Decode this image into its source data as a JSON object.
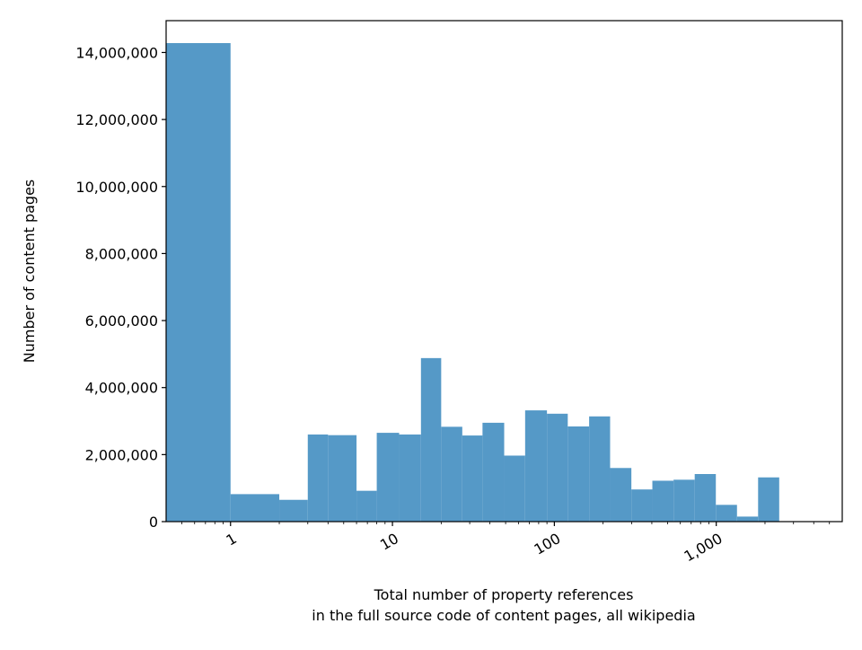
{
  "chart_data": {
    "type": "bar",
    "xscale": "log",
    "ylabel": "Number of content pages",
    "xlabel_lines": [
      "Total number of property references",
      "in the full source code of content pages, all wikipedia"
    ],
    "xlim": [
      0.4,
      6000
    ],
    "ylim": [
      0,
      14950000
    ],
    "grid": false,
    "color": "#5599c7",
    "x_ticks": [
      {
        "value": 1,
        "label": "1"
      },
      {
        "value": 10,
        "label": "10"
      },
      {
        "value": 100,
        "label": "100"
      },
      {
        "value": 1000,
        "label": "1,000"
      }
    ],
    "y_ticks": [
      {
        "value": 0,
        "label": "0"
      },
      {
        "value": 2000000,
        "label": "2,000,000"
      },
      {
        "value": 4000000,
        "label": "4,000,000"
      },
      {
        "value": 6000000,
        "label": "6,000,000"
      },
      {
        "value": 8000000,
        "label": "8,000,000"
      },
      {
        "value": 10000000,
        "label": "10,000,000"
      },
      {
        "value": 12000000,
        "label": "12,000,000"
      },
      {
        "value": 14000000,
        "label": "14,000,000"
      }
    ],
    "bins": [
      {
        "x0": 0.4,
        "x1": 1.0,
        "value": 14280000
      },
      {
        "x0": 1.0,
        "x1": 1.5,
        "value": 820000
      },
      {
        "x0": 1.5,
        "x1": 2.0,
        "value": 820000
      },
      {
        "x0": 2.0,
        "x1": 3.0,
        "value": 650000
      },
      {
        "x0": 3.0,
        "x1": 4.0,
        "value": 2600000
      },
      {
        "x0": 4.0,
        "x1": 6.0,
        "value": 2580000
      },
      {
        "x0": 6.0,
        "x1": 8.0,
        "value": 920000
      },
      {
        "x0": 8.0,
        "x1": 11.0,
        "value": 2650000
      },
      {
        "x0": 11.0,
        "x1": 15.0,
        "value": 2600000
      },
      {
        "x0": 15.0,
        "x1": 20.0,
        "value": 4880000
      },
      {
        "x0": 20.0,
        "x1": 27.0,
        "value": 2830000
      },
      {
        "x0": 27.0,
        "x1": 36.0,
        "value": 2570000
      },
      {
        "x0": 36.0,
        "x1": 49.0,
        "value": 2950000
      },
      {
        "x0": 49.0,
        "x1": 66.0,
        "value": 1970000
      },
      {
        "x0": 66.0,
        "x1": 90.0,
        "value": 3320000
      },
      {
        "x0": 90.0,
        "x1": 121.0,
        "value": 3220000
      },
      {
        "x0": 121.0,
        "x1": 164.0,
        "value": 2840000
      },
      {
        "x0": 164.0,
        "x1": 221.0,
        "value": 3140000
      },
      {
        "x0": 221.0,
        "x1": 299.0,
        "value": 1600000
      },
      {
        "x0": 299.0,
        "x1": 403.0,
        "value": 960000
      },
      {
        "x0": 403.0,
        "x1": 545.0,
        "value": 1220000
      },
      {
        "x0": 545.0,
        "x1": 736.0,
        "value": 1250000
      },
      {
        "x0": 736.0,
        "x1": 994.0,
        "value": 1420000
      },
      {
        "x0": 994.0,
        "x1": 1343.0,
        "value": 500000
      },
      {
        "x0": 1343.0,
        "x1": 1813.0,
        "value": 150000
      },
      {
        "x0": 1813.0,
        "x1": 2448.0,
        "value": 1320000
      },
      {
        "x0": 2448.0,
        "x1": 3306.0,
        "value": 8000
      },
      {
        "x0": 3306.0,
        "x1": 4464.0,
        "value": 5000
      },
      {
        "x0": 4464.0,
        "x1": 6000.0,
        "value": 3000
      }
    ]
  }
}
